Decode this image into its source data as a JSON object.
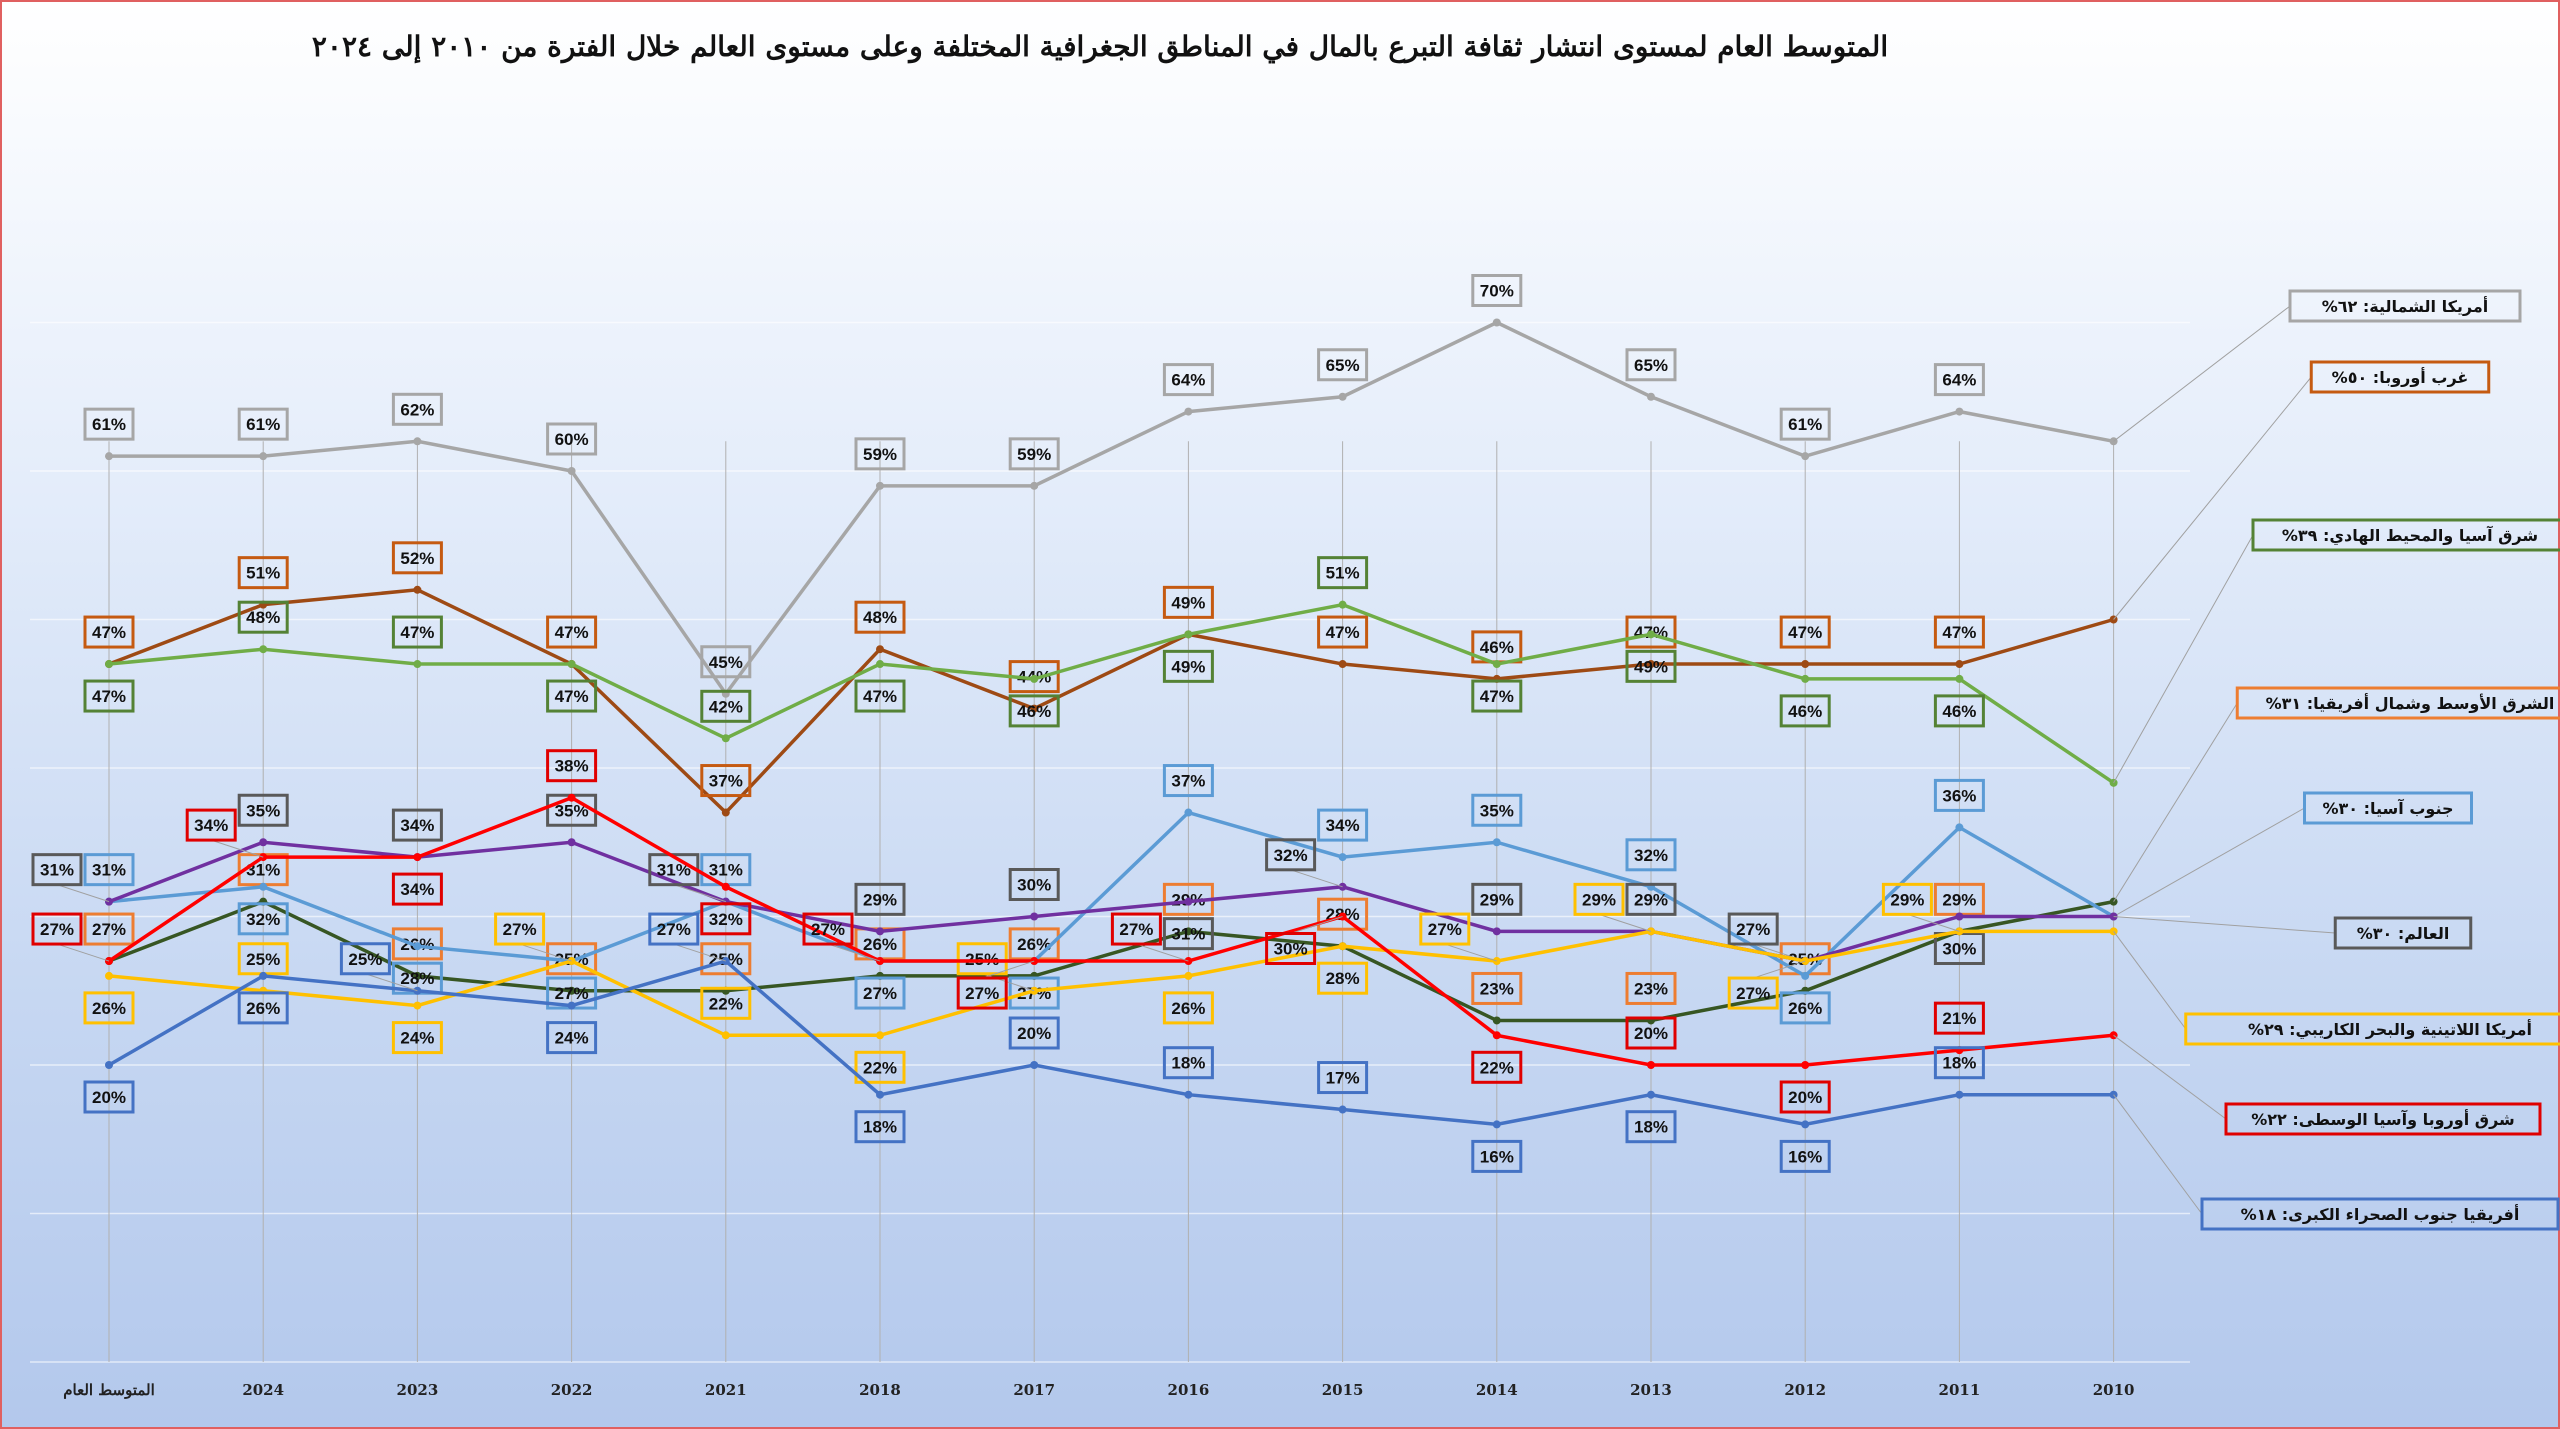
{
  "chart_data": {
    "type": "line",
    "title": "المتوسط العام لمستوى انتشار ثقافة التبرع بالمال في المناطق الجغرافية المختلفة وعلى مستوى العالم خلال الفترة من ٢٠١٠ إلى ٢٠٢٤",
    "xlabel": "",
    "ylabel": "",
    "ylim": [
      0,
      80
    ],
    "grid": true,
    "legend_placement": "right",
    "categories": [
      "المتوسط العام",
      "2024",
      "2023",
      "2022",
      "2021",
      "2018",
      "2017",
      "2016",
      "2015",
      "2014",
      "2013",
      "2012",
      "2011",
      "2010"
    ],
    "series": [
      {
        "name": "أمريكا الشمالية",
        "legend": "أمريكا الشمالية: ٦٢%",
        "line_color": "#a6a6a6",
        "box_color": "#a6a6a6",
        "values": [
          61,
          61,
          62,
          60,
          45,
          59,
          59,
          64,
          65,
          70,
          65,
          61,
          64,
          62
        ]
      },
      {
        "name": "غرب أوروبا",
        "legend": "غرب أوروبا: ٥٠%",
        "line_color": "#9e4a14",
        "box_color": "#c55a11",
        "values": [
          47,
          51,
          52,
          47,
          37,
          48,
          44,
          49,
          47,
          46,
          47,
          47,
          47,
          50
        ]
      },
      {
        "name": "شرق آسيا والمحيط الهادي",
        "legend": "شرق آسيا والمحيط الهادي: ٣٩%",
        "line_color": "#70ad47",
        "box_color": "#548235",
        "values": [
          47,
          48,
          47,
          47,
          42,
          47,
          46,
          49,
          51,
          47,
          49,
          46,
          46,
          39
        ]
      },
      {
        "name": "الشرق الأوسط وشمال أفريقيا",
        "legend": "الشرق الأوسط وشمال أفريقيا: ٣١%",
        "line_color": "#375623",
        "box_color": "#ed7d31",
        "values": [
          27,
          31,
          26,
          25,
          25,
          26,
          26,
          29,
          28,
          23,
          23,
          25,
          29,
          31
        ]
      },
      {
        "name": "جنوب آسيا",
        "legend": "جنوب آسيا: ٣٠%",
        "line_color": "#5b9bd5",
        "box_color": "#5b9bd5",
        "values": [
          31,
          32,
          28,
          27,
          31,
          27,
          27,
          37,
          34,
          35,
          32,
          26,
          36,
          30
        ]
      },
      {
        "name": "العالم",
        "legend": "العالم: ٣٠%",
        "line_color": "#7030a0",
        "box_color": "#595959",
        "values": [
          31,
          35,
          34,
          35,
          31,
          29,
          30,
          31,
          32,
          29,
          29,
          27,
          30,
          30
        ]
      },
      {
        "name": "أمريكا اللاتينية والبحر الكاريبي",
        "legend": "أمريكا اللاتينية والبحر الكاريبي: ٢٩%",
        "line_color": "#ffc000",
        "box_color": "#ffc000",
        "values": [
          26,
          25,
          24,
          27,
          22,
          22,
          25,
          26,
          28,
          27,
          29,
          27,
          29,
          29
        ]
      },
      {
        "name": "شرق أوروبا وآسيا الوسطى",
        "legend": "شرق أوروبا وآسيا الوسطى: ٢٢%",
        "line_color": "#ff0000",
        "box_color": "#e00000",
        "values": [
          27,
          34,
          34,
          38,
          32,
          27,
          27,
          27,
          30,
          22,
          20,
          20,
          21,
          22
        ]
      },
      {
        "name": "أفريقيا جنوب الصحراء الكبرى",
        "legend": "أفريقيا جنوب الصحراء الكبرى: ١٨%",
        "line_color": "#4472c4",
        "box_color": "#4472c4",
        "values": [
          20,
          26,
          25,
          24,
          27,
          18,
          20,
          18,
          17,
          16,
          18,
          16,
          18,
          18
        ]
      }
    ]
  }
}
